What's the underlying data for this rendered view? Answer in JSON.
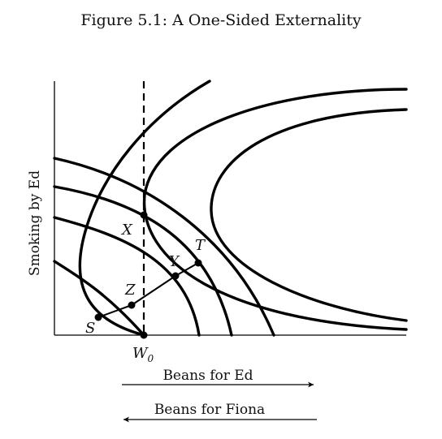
{
  "title": "Figure 5.1: A One-Sided Externality",
  "y_axis_label": "Smoking by Ed",
  "x_axis_label_ed": "Beans for Ed",
  "x_axis_label_fiona": "Beans for Fiona",
  "points": {
    "X": "X",
    "Y": "Y",
    "Z": "Z",
    "T": "T",
    "S": "S",
    "W": "W",
    "W_sub": "0"
  }
}
